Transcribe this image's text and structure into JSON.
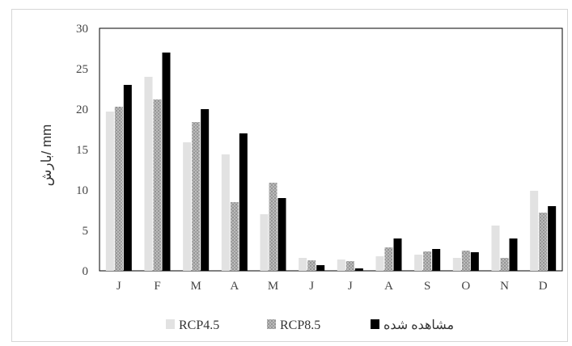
{
  "chart_data": {
    "type": "bar",
    "categories": [
      "J",
      "F",
      "M",
      "A",
      "M",
      "J",
      "J",
      "A",
      "S",
      "O",
      "N",
      "D"
    ],
    "series": [
      {
        "name": "RCP4.5",
        "values": [
          19.7,
          24.0,
          15.9,
          14.4,
          7.0,
          1.6,
          1.4,
          1.8,
          2.0,
          1.6,
          5.6,
          9.9
        ],
        "color": "#e2e2e2",
        "pattern": "solid"
      },
      {
        "name": "RCP8.5",
        "values": [
          20.3,
          21.2,
          18.4,
          8.5,
          10.9,
          1.3,
          1.2,
          2.9,
          2.4,
          2.5,
          1.6,
          7.2
        ],
        "color": "#a9a9a9",
        "pattern": "speckled"
      },
      {
        "name": "مشاهده شده",
        "values": [
          23.0,
          27.0,
          20.0,
          17.0,
          9.0,
          0.7,
          0.3,
          4.0,
          2.7,
          2.3,
          4.0,
          8.0
        ],
        "color": "#000000",
        "pattern": "solid"
      }
    ],
    "y_ticks": [
      "0",
      "5",
      "10",
      "15",
      "20",
      "25",
      "30"
    ],
    "ylabel": "mm /بارش",
    "xlabel": "",
    "title": "",
    "ylim": [
      0,
      30
    ],
    "grid": false,
    "legend_placement": "bottom"
  }
}
